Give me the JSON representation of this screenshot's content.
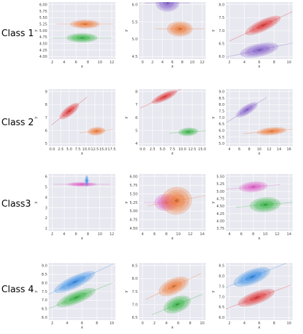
{
  "colors": {
    "panel_bg": "#e8e8f0",
    "grid": "#ffffff",
    "orange": "#f07d3a",
    "green": "#3cb84a",
    "purple": "#8a66cc",
    "red": "#e23a3a",
    "blue": "#3a8fe6",
    "pink": "#e060c8"
  },
  "row_labels": [
    "Class 1",
    "Class 2",
    "Class3",
    "Class 4"
  ],
  "chart_data": [
    {
      "type": "kde2d",
      "row": 0,
      "col": 0,
      "xlabel": "x",
      "ylabel": "y",
      "xticks": [
        "2",
        "4",
        "6",
        "8",
        "10",
        "12"
      ],
      "yticks": [
        "4.00",
        "4.25",
        "4.50",
        "4.75",
        "5.00",
        "5.25",
        "5.50",
        "5.75",
        "6.00"
      ],
      "series": [
        {
          "color": "orange",
          "center": [
            7.5,
            5.25
          ],
          "spread": [
            2.5,
            0.17
          ],
          "tilt": 0
        },
        {
          "color": "green",
          "center": [
            7.0,
            4.72
          ],
          "spread": [
            2.6,
            0.18
          ],
          "tilt": 0
        }
      ]
    },
    {
      "type": "kde2d",
      "row": 0,
      "col": 1,
      "xlabel": "x",
      "ylabel": "y",
      "xticks": [
        "0",
        "2",
        "4",
        "6",
        "8",
        "10",
        "12"
      ],
      "yticks": [
        "4.5",
        "5.0",
        "5.5",
        "6.0"
      ],
      "series": [
        {
          "color": "purple",
          "center": [
            5.0,
            6.05
          ],
          "spread": [
            2.4,
            0.25
          ],
          "tilt": 0
        },
        {
          "color": "orange",
          "center": [
            7.5,
            5.3
          ],
          "spread": [
            2.6,
            0.22
          ],
          "tilt": 0
        }
      ]
    },
    {
      "type": "kde2d",
      "row": 0,
      "col": 2,
      "xlabel": "x",
      "ylabel": "y",
      "xticks": [
        "2",
        "4",
        "6",
        "8",
        "10"
      ],
      "yticks": [
        "6.0",
        "6.5",
        "7.0",
        "7.5",
        "8.0"
      ],
      "series": [
        {
          "color": "red",
          "center": [
            6.5,
            7.2
          ],
          "spread": [
            2.6,
            0.22
          ],
          "tilt": -25
        },
        {
          "color": "purple",
          "center": [
            6.0,
            6.25
          ],
          "spread": [
            2.6,
            0.25
          ],
          "tilt": -12
        }
      ]
    },
    {
      "type": "kde2d",
      "row": 1,
      "col": 0,
      "xlabel": "x",
      "ylabel": "y",
      "xticks": [
        "0.0",
        "2.5",
        "5.0",
        "7.5",
        "10.0",
        "12.5",
        "15.0",
        "17.5"
      ],
      "yticks": [
        "5",
        "6",
        "7",
        "8",
        "9"
      ],
      "series": [
        {
          "color": "red",
          "center": [
            5.0,
            7.5
          ],
          "spread": [
            3.5,
            0.35
          ],
          "tilt": -38
        },
        {
          "color": "orange",
          "center": [
            13.0,
            5.95
          ],
          "spread": [
            2.6,
            0.32
          ],
          "tilt": -5
        }
      ]
    },
    {
      "type": "kde2d",
      "row": 1,
      "col": 1,
      "xlabel": "x",
      "ylabel": "y",
      "xticks": [
        "0.0",
        "2.5",
        "5.0",
        "7.5",
        "10.0",
        "12.5",
        "15.0"
      ],
      "yticks": [
        "4",
        "5",
        "6",
        "7",
        "8"
      ],
      "series": [
        {
          "color": "red",
          "center": [
            5.5,
            7.6
          ],
          "spread": [
            3.5,
            0.3
          ],
          "tilt": -25
        },
        {
          "color": "green",
          "center": [
            11.5,
            4.9
          ],
          "spread": [
            2.5,
            0.32
          ],
          "tilt": -4
        }
      ]
    },
    {
      "type": "kde2d",
      "row": 1,
      "col": 2,
      "xlabel": "x",
      "ylabel": "y",
      "xticks": [
        "4",
        "6",
        "8",
        "10",
        "12",
        "14",
        "16"
      ],
      "yticks": [
        "5.0",
        "5.5",
        "6.0",
        "6.5",
        "7.0",
        "7.5",
        "8.0",
        "8.5",
        "9.0"
      ],
      "series": [
        {
          "color": "purple",
          "center": [
            7.5,
            7.6
          ],
          "spread": [
            2.5,
            0.35
          ],
          "tilt": -32
        },
        {
          "color": "orange",
          "center": [
            12.5,
            5.95
          ],
          "spread": [
            3.0,
            0.3
          ],
          "tilt": -5
        }
      ]
    },
    {
      "type": "kde2d",
      "row": 2,
      "col": 0,
      "xlabel": "x",
      "ylabel": "y",
      "xticks": [
        "2",
        "4",
        "6",
        "8",
        "10",
        "12"
      ],
      "yticks": [
        "1",
        "2",
        "3",
        "4",
        "5",
        "6"
      ],
      "series": [
        {
          "color": "pink",
          "center": [
            7.0,
            5.25
          ],
          "spread": [
            2.5,
            0.22
          ],
          "tilt": 0
        },
        {
          "color": "blue",
          "center": [
            7.8,
            5.6
          ],
          "spread": [
            0.3,
            0.55
          ],
          "tilt": 0
        }
      ]
    },
    {
      "type": "kde2d",
      "row": 2,
      "col": 1,
      "xlabel": "x",
      "ylabel": "y",
      "xticks": [
        "4",
        "6",
        "8",
        "10",
        "12",
        "14"
      ],
      "yticks": [
        "4.50",
        "4.75",
        "5.00",
        "5.25",
        "5.50",
        "5.75",
        "6.00"
      ],
      "series": [
        {
          "color": "pink",
          "center": [
            8.0,
            5.25
          ],
          "spread": [
            2.0,
            0.25
          ],
          "tilt": 0
        },
        {
          "color": "orange",
          "center": [
            9.7,
            5.3
          ],
          "spread": [
            2.6,
            0.4
          ],
          "tilt": -10
        }
      ]
    },
    {
      "type": "kde2d",
      "row": 2,
      "col": 2,
      "xlabel": "x",
      "ylabel": "y",
      "xticks": [
        "4",
        "6",
        "8",
        "10",
        "12",
        "14"
      ],
      "yticks": [
        "3.75",
        "4.00",
        "4.25",
        "4.50",
        "4.75",
        "5.00",
        "5.25",
        "5.50"
      ],
      "series": [
        {
          "color": "pink",
          "center": [
            8.0,
            5.15
          ],
          "spread": [
            2.4,
            0.18
          ],
          "tilt": -5
        },
        {
          "color": "green",
          "center": [
            10.0,
            4.55
          ],
          "spread": [
            2.6,
            0.25
          ],
          "tilt": -5
        }
      ]
    },
    {
      "type": "kde2d",
      "row": 3,
      "col": 0,
      "xlabel": "x",
      "ylabel": "y",
      "xticks": [
        "2",
        "4",
        "6",
        "8",
        "10"
      ],
      "yticks": [
        "6.0",
        "6.5",
        "7.0",
        "7.5",
        "8.0",
        "8.5",
        "9.0"
      ],
      "series": [
        {
          "color": "blue",
          "center": [
            5.0,
            8.05
          ],
          "spread": [
            3.0,
            0.35
          ],
          "tilt": -25
        },
        {
          "color": "green",
          "center": [
            5.2,
            7.15
          ],
          "spread": [
            2.8,
            0.35
          ],
          "tilt": -22
        }
      ]
    },
    {
      "type": "kde2d",
      "row": 3,
      "col": 1,
      "xlabel": "x",
      "ylabel": "y",
      "xticks": [
        "0",
        "2",
        "4",
        "6",
        "8",
        "10"
      ],
      "yticks": [
        "6.5",
        "7.0",
        "7.5",
        "8.0",
        "8.5"
      ],
      "series": [
        {
          "color": "orange",
          "center": [
            5.2,
            7.7
          ],
          "spread": [
            2.7,
            0.3
          ],
          "tilt": -25
        },
        {
          "color": "green",
          "center": [
            5.8,
            7.0
          ],
          "spread": [
            2.4,
            0.3
          ],
          "tilt": -22
        }
      ]
    },
    {
      "type": "kde2d",
      "row": 3,
      "col": 2,
      "xlabel": "x",
      "ylabel": "y",
      "xticks": [
        "2",
        "4",
        "6",
        "8",
        "10"
      ],
      "yticks": [
        "6.0",
        "6.5",
        "7.0",
        "7.5",
        "8.0",
        "8.5"
      ],
      "series": [
        {
          "color": "blue",
          "center": [
            5.0,
            7.95
          ],
          "spread": [
            2.6,
            0.35
          ],
          "tilt": -22
        },
        {
          "color": "red",
          "center": [
            5.6,
            6.95
          ],
          "spread": [
            2.6,
            0.3
          ],
          "tilt": -20
        }
      ]
    }
  ]
}
